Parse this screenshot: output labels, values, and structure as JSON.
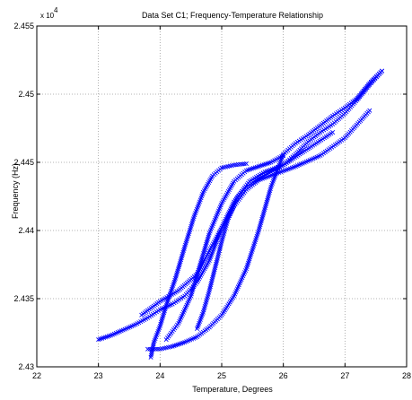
{
  "chart_data": {
    "type": "scatter",
    "title": "Data Set C1; Frequency-Temperature Relationship",
    "xlabel": "Temperature, Degrees",
    "ylabel": "Frequency (Hz)",
    "y_multiplier_label": "x 10",
    "y_multiplier_exponent": "4",
    "xlim": [
      22,
      28
    ],
    "ylim": [
      2.43,
      2.455
    ],
    "y_scale_factor": 10000,
    "xticks": [
      "22",
      "23",
      "24",
      "25",
      "26",
      "27",
      "28"
    ],
    "yticks": [
      "2.43",
      "2.435",
      "2.44",
      "2.445",
      "2.45",
      "2.455"
    ],
    "grid": true,
    "marker": "x",
    "color": "#0000ff",
    "series": [
      {
        "points": [
          [
            23.0,
            2.432
          ],
          [
            23.2,
            2.4323
          ],
          [
            23.4,
            2.4327
          ],
          [
            23.6,
            2.4331
          ],
          [
            23.8,
            2.4336
          ],
          [
            24.0,
            2.4342
          ],
          [
            24.2,
            2.4346
          ],
          [
            24.4,
            2.4352
          ],
          [
            24.6,
            2.4362
          ],
          [
            24.8,
            2.4378
          ],
          [
            25.0,
            2.4402
          ],
          [
            25.2,
            2.4421
          ],
          [
            25.4,
            2.4432
          ],
          [
            25.6,
            2.4438
          ],
          [
            25.8,
            2.4443
          ],
          [
            26.0,
            2.4448
          ],
          [
            26.2,
            2.4456
          ],
          [
            26.4,
            2.4465
          ],
          [
            26.6,
            2.4472
          ],
          [
            26.8,
            2.4478
          ],
          [
            27.0,
            2.4486
          ],
          [
            27.2,
            2.4496
          ],
          [
            27.4,
            2.4507
          ],
          [
            27.6,
            2.4517
          ]
        ]
      },
      {
        "points": [
          [
            23.8,
            2.4313
          ],
          [
            24.0,
            2.4313
          ],
          [
            24.2,
            2.4315
          ],
          [
            24.4,
            2.4318
          ],
          [
            24.6,
            2.4322
          ],
          [
            24.8,
            2.4329
          ],
          [
            25.0,
            2.4338
          ],
          [
            25.2,
            2.4352
          ],
          [
            25.4,
            2.4372
          ],
          [
            25.6,
            2.44
          ],
          [
            25.8,
            2.4432
          ],
          [
            26.0,
            2.4456
          ],
          [
            26.2,
            2.4464
          ],
          [
            26.4,
            2.447
          ],
          [
            26.6,
            2.4477
          ],
          [
            26.8,
            2.4484
          ],
          [
            27.0,
            2.449
          ],
          [
            27.2,
            2.4497
          ],
          [
            27.4,
            2.4508
          ],
          [
            27.6,
            2.4517
          ]
        ]
      },
      {
        "points": [
          [
            23.85,
            2.4307
          ],
          [
            23.9,
            2.4318
          ],
          [
            24.0,
            2.433
          ],
          [
            24.1,
            2.4345
          ],
          [
            24.25,
            2.4365
          ],
          [
            24.4,
            2.4388
          ],
          [
            24.55,
            2.441
          ],
          [
            24.7,
            2.4428
          ],
          [
            24.85,
            2.444
          ],
          [
            25.0,
            2.4446
          ],
          [
            25.2,
            2.4448
          ],
          [
            25.4,
            2.4449
          ]
        ]
      },
      {
        "points": [
          [
            24.1,
            2.432
          ],
          [
            24.3,
            2.4332
          ],
          [
            24.5,
            2.4352
          ],
          [
            24.65,
            2.4375
          ],
          [
            24.8,
            2.4398
          ],
          [
            25.0,
            2.442
          ],
          [
            25.2,
            2.4436
          ],
          [
            25.4,
            2.4444
          ],
          [
            25.6,
            2.4447
          ],
          [
            25.8,
            2.445
          ],
          [
            26.0,
            2.4455
          ]
        ]
      },
      {
        "points": [
          [
            24.6,
            2.4328
          ],
          [
            24.7,
            2.434
          ],
          [
            24.8,
            2.4356
          ],
          [
            24.9,
            2.4374
          ],
          [
            25.0,
            2.4392
          ],
          [
            25.1,
            2.4408
          ],
          [
            25.25,
            2.4424
          ],
          [
            25.45,
            2.4436
          ],
          [
            25.7,
            2.4443
          ],
          [
            26.0,
            2.4448
          ],
          [
            26.4,
            2.446
          ],
          [
            26.8,
            2.4472
          ]
        ]
      },
      {
        "points": [
          [
            23.7,
            2.4338
          ],
          [
            24.0,
            2.4348
          ],
          [
            24.3,
            2.4356
          ],
          [
            24.6,
            2.4368
          ],
          [
            24.8,
            2.4385
          ],
          [
            25.0,
            2.4402
          ],
          [
            25.2,
            2.4418
          ],
          [
            25.4,
            2.443
          ],
          [
            25.6,
            2.4437
          ],
          [
            25.9,
            2.4442
          ],
          [
            26.2,
            2.4447
          ],
          [
            26.6,
            2.4455
          ],
          [
            27.0,
            2.4468
          ],
          [
            27.4,
            2.4488
          ]
        ]
      }
    ]
  }
}
